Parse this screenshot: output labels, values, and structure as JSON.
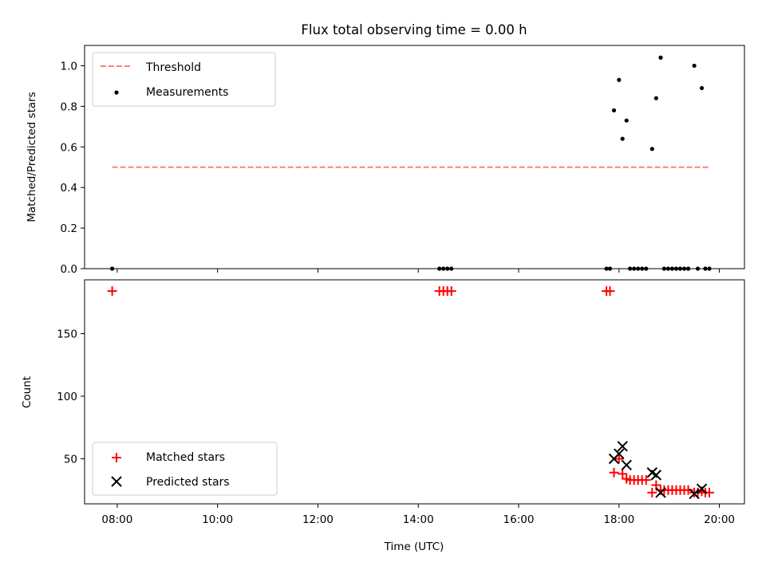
{
  "chart_data": [
    {
      "type": "scatter",
      "title": "Flux total observing time = 0.00 h",
      "xlabel": "",
      "ylabel": "Matched/Predicted stars",
      "xlim": [
        7.35,
        20.5
      ],
      "ylim": [
        0.0,
        1.1
      ],
      "yticks": [
        0.0,
        0.2,
        0.4,
        0.6,
        0.8,
        1.0
      ],
      "ytick_labels": [
        "0.0",
        "0.2",
        "0.4",
        "0.6",
        "0.8",
        "1.0"
      ],
      "legend": {
        "position": "top-left",
        "entries": [
          "Threshold",
          "Measurements"
        ]
      },
      "threshold": {
        "name": "Threshold",
        "y": 0.5,
        "x_range": [
          7.9,
          19.8
        ],
        "color": "#ff7f7f",
        "style": "dashed"
      },
      "series": [
        {
          "name": "Measurements",
          "color": "#000000",
          "points": [
            [
              7.9,
              0.0
            ],
            [
              14.42,
              0.0
            ],
            [
              14.5,
              0.0
            ],
            [
              14.58,
              0.0
            ],
            [
              14.66,
              0.0
            ],
            [
              17.75,
              0.0
            ],
            [
              17.82,
              0.0
            ],
            [
              17.9,
              0.78
            ],
            [
              18.0,
              0.93
            ],
            [
              18.07,
              0.64
            ],
            [
              18.15,
              0.73
            ],
            [
              18.22,
              0.0
            ],
            [
              18.3,
              0.0
            ],
            [
              18.38,
              0.0
            ],
            [
              18.46,
              0.0
            ],
            [
              18.54,
              0.0
            ],
            [
              18.66,
              0.59
            ],
            [
              18.74,
              0.84
            ],
            [
              18.83,
              1.04
            ],
            [
              18.9,
              0.0
            ],
            [
              18.98,
              0.0
            ],
            [
              19.06,
              0.0
            ],
            [
              19.14,
              0.0
            ],
            [
              19.22,
              0.0
            ],
            [
              19.3,
              0.0
            ],
            [
              19.38,
              0.0
            ],
            [
              19.5,
              1.0
            ],
            [
              19.57,
              0.0
            ],
            [
              19.65,
              0.89
            ],
            [
              19.72,
              0.0
            ],
            [
              19.8,
              0.0
            ]
          ]
        }
      ]
    },
    {
      "type": "scatter",
      "title": "",
      "xlabel": "Time (UTC)",
      "ylabel": "Count",
      "xlim": [
        7.35,
        20.5
      ],
      "ylim": [
        14,
        193
      ],
      "xticks": [
        8,
        10,
        12,
        14,
        16,
        18,
        20
      ],
      "xtick_labels": [
        "08:00",
        "10:00",
        "12:00",
        "14:00",
        "16:00",
        "18:00",
        "20:00"
      ],
      "yticks": [
        50,
        100,
        150
      ],
      "ytick_labels": [
        "50",
        "100",
        "150"
      ],
      "legend": {
        "position": "bottom-left",
        "entries": [
          "Matched stars",
          "Predicted stars"
        ]
      },
      "series": [
        {
          "name": "Matched stars",
          "marker": "plus",
          "color": "#ff0000",
          "points": [
            [
              7.9,
              184
            ],
            [
              14.42,
              184
            ],
            [
              14.5,
              184
            ],
            [
              14.58,
              184
            ],
            [
              14.66,
              184
            ],
            [
              17.75,
              184
            ],
            [
              17.82,
              184
            ],
            [
              17.9,
              39
            ],
            [
              18.0,
              50
            ],
            [
              18.07,
              38
            ],
            [
              18.15,
              34
            ],
            [
              18.22,
              33
            ],
            [
              18.3,
              33
            ],
            [
              18.38,
              33
            ],
            [
              18.46,
              33
            ],
            [
              18.54,
              33
            ],
            [
              18.66,
              23
            ],
            [
              18.74,
              29
            ],
            [
              18.83,
              25
            ],
            [
              18.9,
              25
            ],
            [
              18.98,
              25
            ],
            [
              19.06,
              25
            ],
            [
              19.14,
              25
            ],
            [
              19.22,
              25
            ],
            [
              19.3,
              25
            ],
            [
              19.38,
              25
            ],
            [
              19.5,
              23
            ],
            [
              19.57,
              23
            ],
            [
              19.65,
              24
            ],
            [
              19.72,
              23
            ],
            [
              19.8,
              23
            ]
          ]
        },
        {
          "name": "Predicted stars",
          "marker": "x",
          "color": "#000000",
          "points": [
            [
              17.9,
              50
            ],
            [
              18.0,
              54
            ],
            [
              18.07,
              60
            ],
            [
              18.15,
              45
            ],
            [
              18.66,
              39
            ],
            [
              18.74,
              37
            ],
            [
              18.83,
              23
            ],
            [
              19.5,
              22
            ],
            [
              19.65,
              26
            ]
          ]
        }
      ]
    }
  ]
}
